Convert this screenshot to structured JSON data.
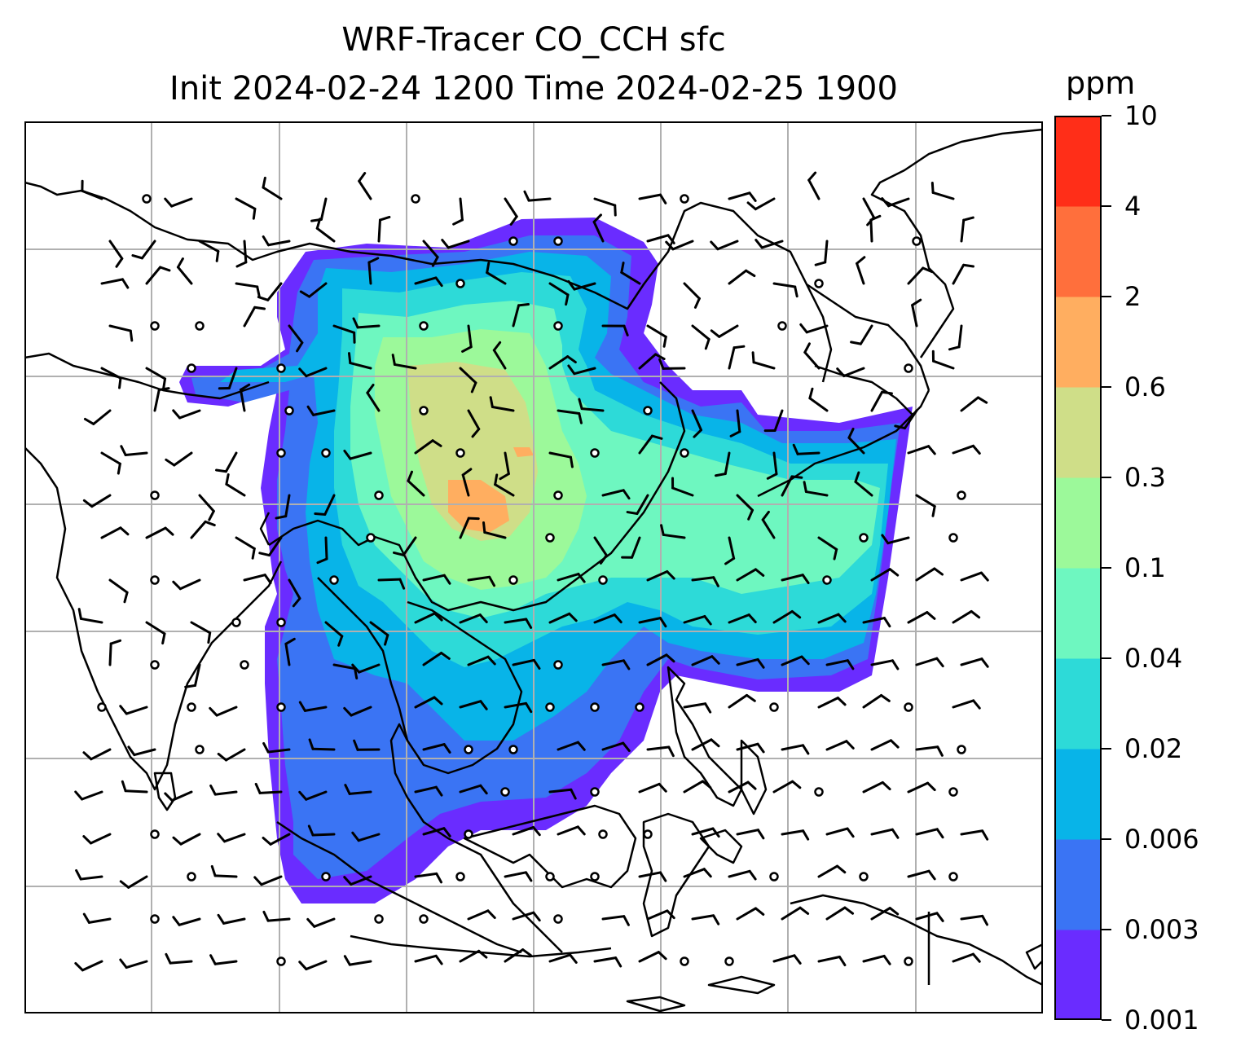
{
  "title": {
    "line1": "WRF-Tracer CO_CCH sfc",
    "line2": "Init 2024-02-24 1200 Time 2024-02-25 1900"
  },
  "colorbar": {
    "unit": "ppm",
    "levels": [
      "0.001",
      "0.003",
      "0.006",
      "0.02",
      "0.04",
      "0.1",
      "0.3",
      "0.6",
      "2",
      "4",
      "10"
    ],
    "colors": [
      "#6a2cff",
      "#3a74f4",
      "#08b4e8",
      "#2ddad8",
      "#6ef7c0",
      "#9cf99a",
      "#cfde88",
      "#ffae60",
      "#ff6f3c",
      "#ff2e18"
    ]
  },
  "map": {
    "background": "#ffffff",
    "gridline_color": "#b0b0b0",
    "coastline_color": "#000000",
    "wind_barb_color": "#000000"
  }
}
